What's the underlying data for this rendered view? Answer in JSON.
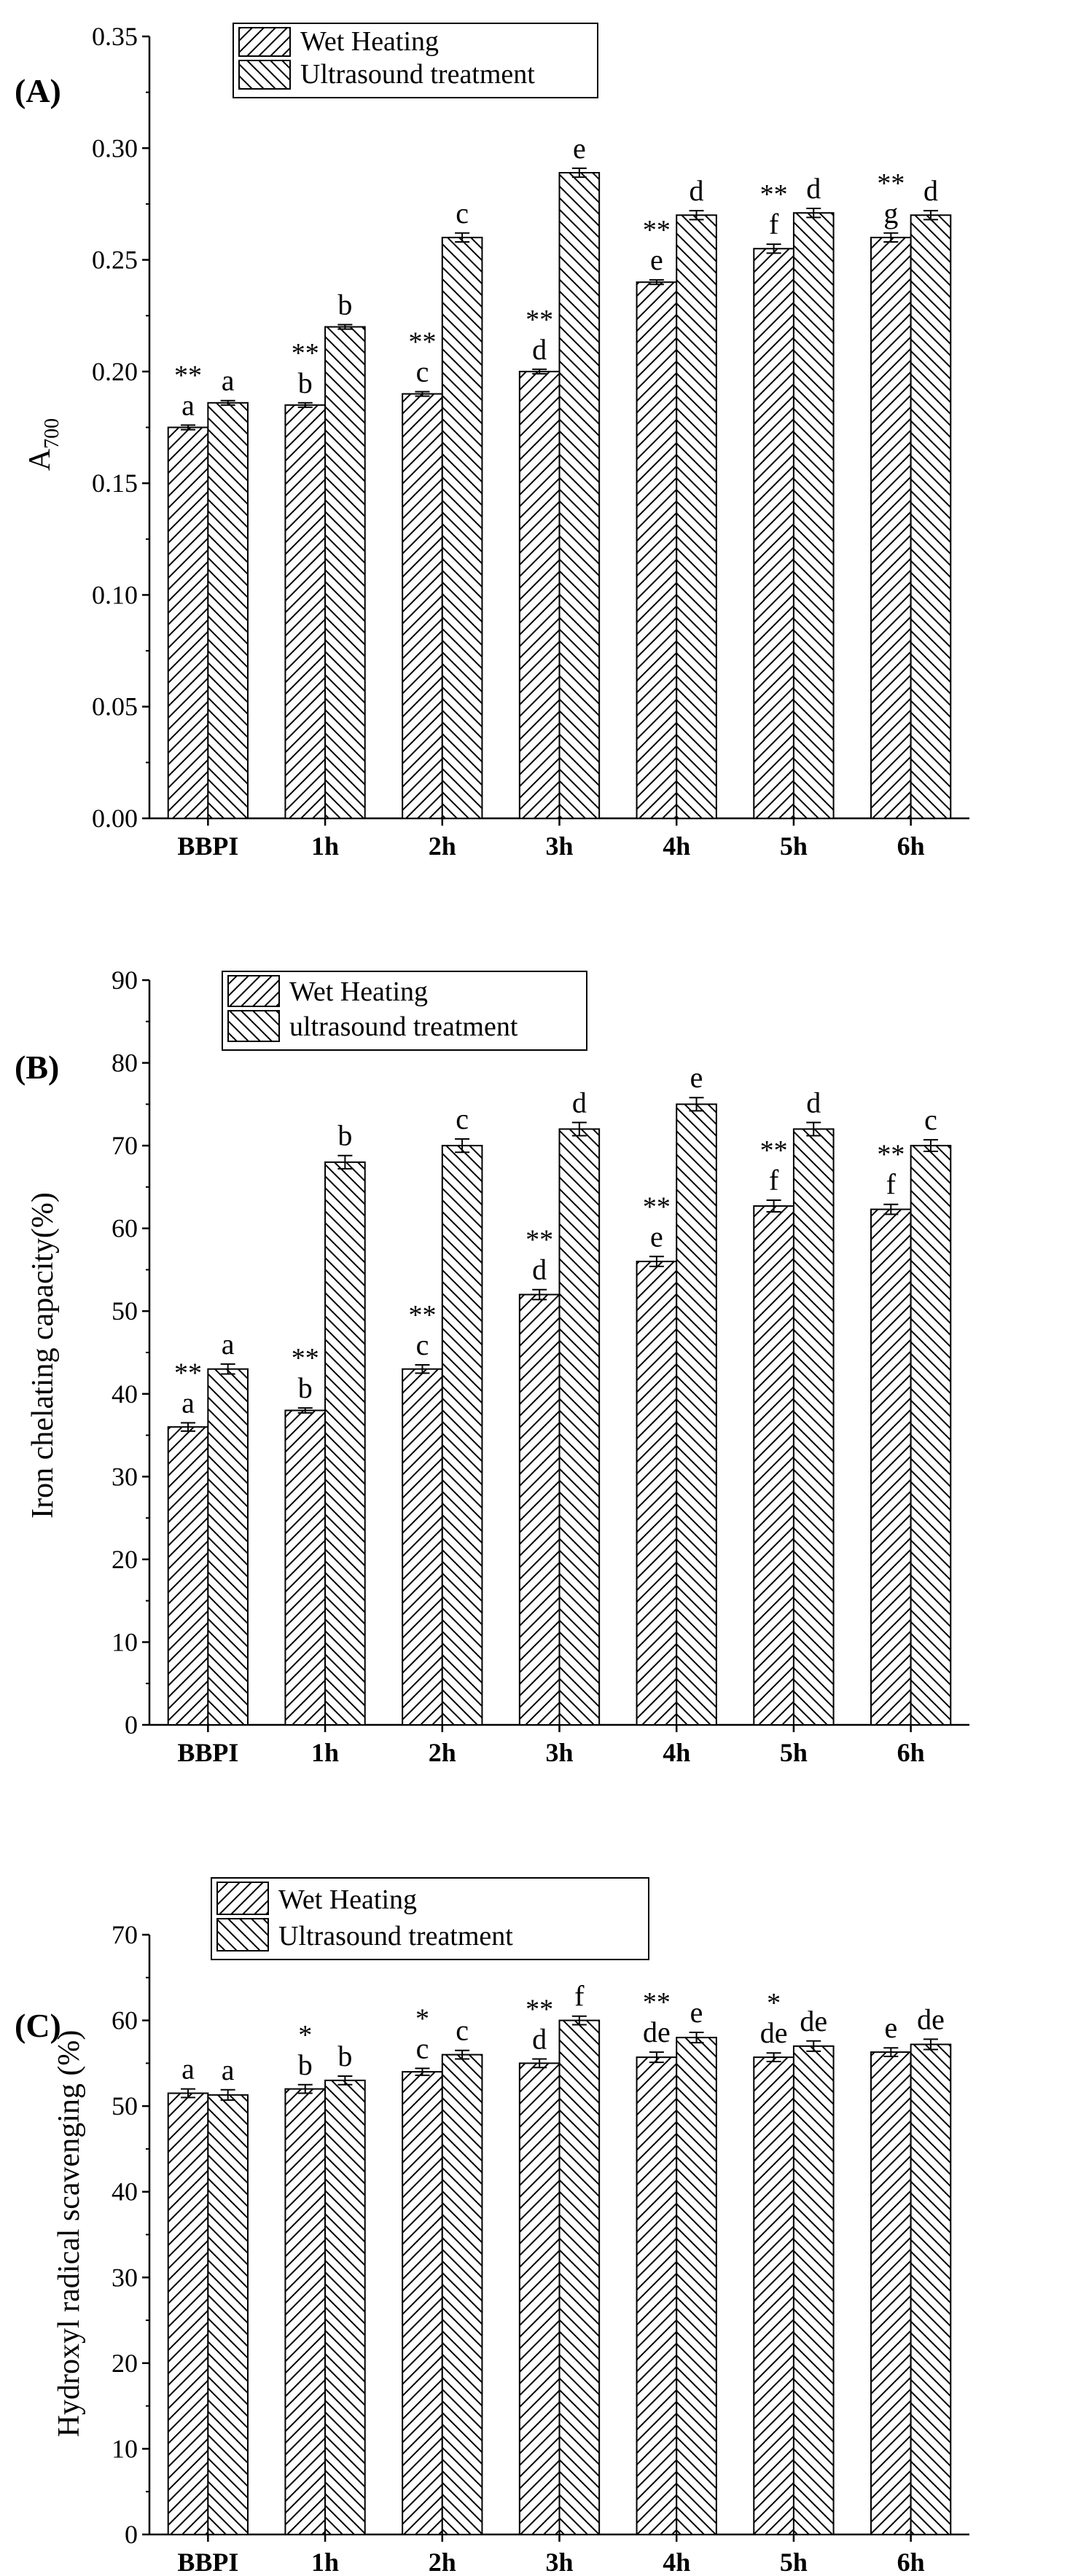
{
  "chart_data": [
    {
      "type": "bar",
      "panel_label": "(A)",
      "title": "",
      "xlabel": "",
      "ylabel_main": "A",
      "ylabel_sub": "700",
      "categories": [
        "BBPI",
        "1h",
        "2h",
        "3h",
        "4h",
        "5h",
        "6h"
      ],
      "ylim": [
        0,
        0.35
      ],
      "yticks": [
        "0.00",
        "0.05",
        "0.10",
        "0.15",
        "0.20",
        "0.25",
        "0.30",
        "0.35"
      ],
      "legend_position": "top-left",
      "series": [
        {
          "name": "Wet Heating",
          "hatch": "forward",
          "values": [
            0.175,
            0.185,
            0.19,
            0.2,
            0.24,
            0.255,
            0.26
          ],
          "errors": [
            0.001,
            0.001,
            0.001,
            0.001,
            0.001,
            0.002,
            0.002
          ],
          "letters": [
            "a",
            "b",
            "c",
            "d",
            "e",
            "f",
            "g"
          ],
          "stars": [
            "**",
            "**",
            "**",
            "**",
            "**",
            "**",
            "**"
          ]
        },
        {
          "name": "Ultrasound treatment",
          "hatch": "back",
          "values": [
            0.186,
            0.22,
            0.26,
            0.289,
            0.27,
            0.271,
            0.27
          ],
          "errors": [
            0.001,
            0.001,
            0.002,
            0.002,
            0.002,
            0.002,
            0.002
          ],
          "letters": [
            "a",
            "b",
            "c",
            "e",
            "d",
            "d",
            "d"
          ]
        }
      ]
    },
    {
      "type": "bar",
      "panel_label": "(B)",
      "title": "",
      "xlabel": "",
      "ylabel_main": "Iron chelating capacity(%)",
      "ylabel_sub": "",
      "categories": [
        "BBPI",
        "1h",
        "2h",
        "3h",
        "4h",
        "5h",
        "6h"
      ],
      "ylim": [
        0,
        90
      ],
      "yticks": [
        "0",
        "10",
        "20",
        "30",
        "40",
        "50",
        "60",
        "70",
        "80",
        "90"
      ],
      "legend_position": "top-left",
      "series": [
        {
          "name": "Wet Heating",
          "hatch": "forward",
          "values": [
            36,
            38,
            43,
            52,
            56,
            62.7,
            62.3
          ],
          "errors": [
            0.5,
            0.3,
            0.5,
            0.6,
            0.6,
            0.7,
            0.6
          ],
          "letters": [
            "a",
            "b",
            "c",
            "d",
            "e",
            "f",
            "f"
          ],
          "stars": [
            "**",
            "**",
            "**",
            "**",
            "**",
            "**",
            "**"
          ]
        },
        {
          "name": "ultrasound treatment",
          "hatch": "back",
          "values": [
            43,
            68,
            70,
            72,
            75,
            72,
            70
          ],
          "errors": [
            0.6,
            0.8,
            0.8,
            0.8,
            0.8,
            0.8,
            0.7
          ],
          "letters": [
            "a",
            "b",
            "c",
            "d",
            "e",
            "d",
            "c"
          ]
        }
      ]
    },
    {
      "type": "bar",
      "panel_label": "(C)",
      "title": "",
      "xlabel": "",
      "ylabel_main": "Hydroxyl radical scavenging (%)",
      "ylabel_sub": "",
      "categories": [
        "BBPI",
        "1h",
        "2h",
        "3h",
        "4h",
        "5h",
        "6h"
      ],
      "ylim": [
        0,
        70
      ],
      "yticks": [
        "0",
        "10",
        "20",
        "30",
        "40",
        "50",
        "60",
        "70"
      ],
      "legend_position": "top-left",
      "series": [
        {
          "name": "Wet Heating",
          "hatch": "forward",
          "values": [
            51.5,
            52,
            54,
            55,
            55.7,
            55.7,
            56.3
          ],
          "errors": [
            0.5,
            0.5,
            0.4,
            0.5,
            0.6,
            0.5,
            0.5
          ],
          "letters": [
            "a",
            "b",
            "c",
            "d",
            "de",
            "de",
            "e"
          ],
          "stars": [
            "",
            "*",
            "*",
            "**",
            "**",
            "*",
            ""
          ]
        },
        {
          "name": "Ultrasound treatment",
          "hatch": "back",
          "values": [
            51.3,
            53,
            56,
            60,
            58,
            57,
            57.2
          ],
          "errors": [
            0.6,
            0.5,
            0.5,
            0.5,
            0.6,
            0.6,
            0.6
          ],
          "letters": [
            "a",
            "b",
            "c",
            "f",
            "e",
            "de",
            "de"
          ]
        }
      ]
    }
  ]
}
